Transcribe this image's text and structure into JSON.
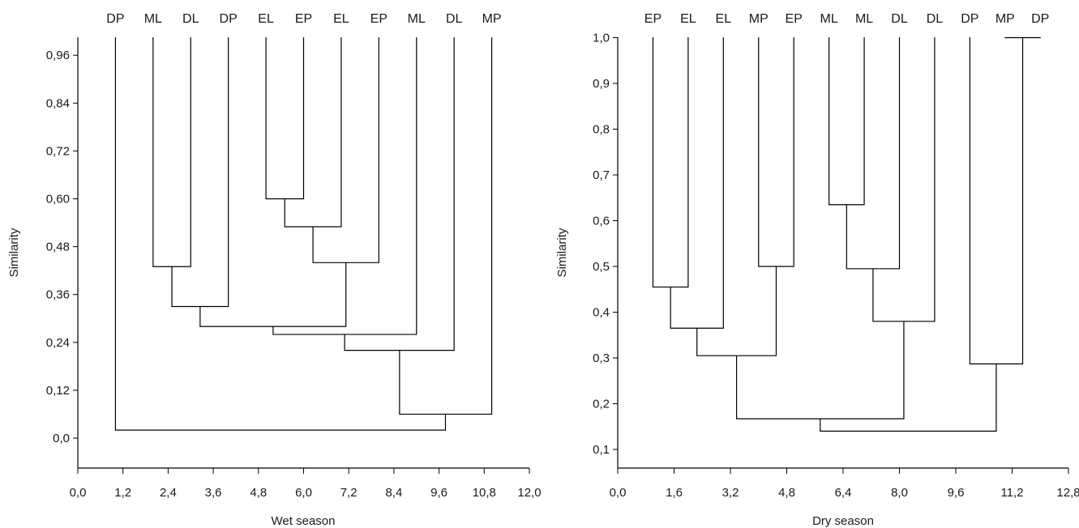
{
  "chart_data": [
    {
      "type": "dendrogram",
      "xlabel": "Wet season",
      "ylabel": "Similarity",
      "xticks": [
        "0,0",
        "1,2",
        "2,4",
        "3,6",
        "4,8",
        "6,0",
        "7,2",
        "8,4",
        "9,6",
        "10,8",
        "12,0"
      ],
      "xtick_values": [
        0,
        1.2,
        2.4,
        3.6,
        4.8,
        6.0,
        7.2,
        8.4,
        9.6,
        10.8,
        12.0
      ],
      "xlim": [
        0,
        12.0
      ],
      "yticks": [
        "0,0",
        "0,12",
        "0,24",
        "0,36",
        "0,48",
        "0,60",
        "0,72",
        "0,84",
        "0,96"
      ],
      "ytick_values": [
        0,
        0.12,
        0.24,
        0.36,
        0.48,
        0.6,
        0.72,
        0.84,
        0.96
      ],
      "leaves": [
        {
          "label": "DP",
          "x": 1
        },
        {
          "label": "ML",
          "x": 2
        },
        {
          "label": "DL",
          "x": 3
        },
        {
          "label": "DP",
          "x": 4
        },
        {
          "label": "EL",
          "x": 5
        },
        {
          "label": "EP",
          "x": 6
        },
        {
          "label": "EL",
          "x": 7
        },
        {
          "label": "EP",
          "x": 8
        },
        {
          "label": "ML",
          "x": 9
        },
        {
          "label": "DL",
          "x": 10
        },
        {
          "label": "MP",
          "x": 11
        }
      ],
      "merges": [
        {
          "left": {
            "x": 5,
            "y": 1.0
          },
          "right": {
            "x": 6,
            "y": 1.0
          },
          "similarity": 0.6,
          "x": 5.5
        },
        {
          "left": {
            "x": 5.5,
            "y": 0.6
          },
          "right": {
            "x": 7,
            "y": 1.0
          },
          "similarity": 0.53,
          "x": 6.25
        },
        {
          "left": {
            "x": 6.25,
            "y": 0.53
          },
          "right": {
            "x": 8,
            "y": 1.0
          },
          "similarity": 0.44,
          "x": 7.125
        },
        {
          "left": {
            "x": 2,
            "y": 1.0
          },
          "right": {
            "x": 3,
            "y": 1.0
          },
          "similarity": 0.43,
          "x": 2.5
        },
        {
          "left": {
            "x": 2.5,
            "y": 0.43
          },
          "right": {
            "x": 4,
            "y": 1.0
          },
          "similarity": 0.33,
          "x": 3.25
        },
        {
          "left": {
            "x": 3.25,
            "y": 0.33
          },
          "right": {
            "x": 7.125,
            "y": 0.44
          },
          "similarity": 0.28,
          "x": 5.19
        },
        {
          "left": {
            "x": 5.19,
            "y": 0.28
          },
          "right": {
            "x": 9,
            "y": 1.0
          },
          "similarity": 0.26,
          "x": 7.09
        },
        {
          "left": {
            "x": 7.09,
            "y": 0.26
          },
          "right": {
            "x": 10,
            "y": 1.0
          },
          "similarity": 0.22,
          "x": 8.55
        },
        {
          "left": {
            "x": 8.55,
            "y": 0.22
          },
          "right": {
            "x": 11,
            "y": 1.0
          },
          "similarity": 0.06,
          "x": 9.77
        },
        {
          "left": {
            "x": 1,
            "y": 1.0
          },
          "right": {
            "x": 9.77,
            "y": 0.06
          },
          "similarity": 0.02,
          "x": 5.39
        }
      ]
    },
    {
      "type": "dendrogram",
      "xlabel": "Dry season",
      "ylabel": "Similarity",
      "xticks": [
        "0,0",
        "1,6",
        "3,2",
        "4,8",
        "6,4",
        "8,0",
        "9,6",
        "11,2",
        "12,8"
      ],
      "xtick_values": [
        0,
        1.6,
        3.2,
        4.8,
        6.4,
        8.0,
        9.6,
        11.2,
        12.8
      ],
      "xlim": [
        0,
        12.8
      ],
      "yticks": [
        "0,1",
        "0,2",
        "0,3",
        "0,4",
        "0,5",
        "0,6",
        "0,7",
        "0,8",
        "0,9",
        "1,0"
      ],
      "ytick_values": [
        0.1,
        0.2,
        0.3,
        0.4,
        0.5,
        0.6,
        0.7,
        0.8,
        0.9,
        1.0
      ],
      "leaves": [
        {
          "label": "EP",
          "x": 1
        },
        {
          "label": "EL",
          "x": 2
        },
        {
          "label": "EL",
          "x": 3
        },
        {
          "label": "MP",
          "x": 4
        },
        {
          "label": "EP",
          "x": 5
        },
        {
          "label": "ML",
          "x": 6
        },
        {
          "label": "ML",
          "x": 7
        },
        {
          "label": "DL",
          "x": 8
        },
        {
          "label": "DL",
          "x": 9
        },
        {
          "label": "DP",
          "x": 10
        },
        {
          "label": "MP",
          "x": 11
        },
        {
          "label": "DP",
          "x": 12
        }
      ],
      "merges": [
        {
          "left": {
            "x": 11,
            "y": 1.0
          },
          "right": {
            "x": 12,
            "y": 1.0
          },
          "similarity": 1.0,
          "x": 11.5
        },
        {
          "left": {
            "x": 6,
            "y": 1.0
          },
          "right": {
            "x": 7,
            "y": 1.0
          },
          "similarity": 0.635,
          "x": 6.5
        },
        {
          "left": {
            "x": 4,
            "y": 1.0
          },
          "right": {
            "x": 5,
            "y": 1.0
          },
          "similarity": 0.5,
          "x": 4.5
        },
        {
          "left": {
            "x": 6.5,
            "y": 0.635
          },
          "right": {
            "x": 8,
            "y": 1.0
          },
          "similarity": 0.495,
          "x": 7.25
        },
        {
          "left": {
            "x": 1,
            "y": 1.0
          },
          "right": {
            "x": 2,
            "y": 1.0
          },
          "similarity": 0.455,
          "x": 1.5
        },
        {
          "left": {
            "x": 7.25,
            "y": 0.495
          },
          "right": {
            "x": 9,
            "y": 1.0
          },
          "similarity": 0.38,
          "x": 8.125
        },
        {
          "left": {
            "x": 1.5,
            "y": 0.455
          },
          "right": {
            "x": 3,
            "y": 1.0
          },
          "similarity": 0.365,
          "x": 2.25
        },
        {
          "left": {
            "x": 2.25,
            "y": 0.365
          },
          "right": {
            "x": 4.5,
            "y": 0.5
          },
          "similarity": 0.305,
          "x": 3.375
        },
        {
          "left": {
            "x": 10,
            "y": 1.0
          },
          "right": {
            "x": 11.5,
            "y": 1.0
          },
          "similarity": 0.287,
          "x": 10.75
        },
        {
          "left": {
            "x": 3.375,
            "y": 0.305
          },
          "right": {
            "x": 8.125,
            "y": 0.38
          },
          "similarity": 0.167,
          "x": 5.75
        },
        {
          "left": {
            "x": 5.75,
            "y": 0.167
          },
          "right": {
            "x": 10.75,
            "y": 0.287
          },
          "similarity": 0.14,
          "x": 8.25
        }
      ]
    }
  ]
}
